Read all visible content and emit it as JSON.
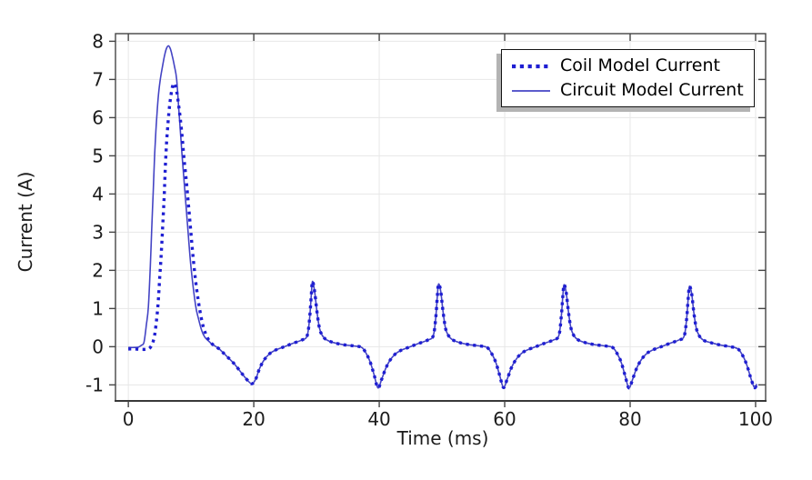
{
  "figure": {
    "background": "#ffffff",
    "axis_color": "#454545",
    "grid_color": "#e7e7e7",
    "text_color": "#1c1c1c"
  },
  "chart_data": {
    "type": "line",
    "title": "",
    "xlabel": "Time (ms)",
    "ylabel": "Current (A)",
    "xlim": [
      -2.05,
      101.6
    ],
    "ylim": [
      -1.42,
      8.2
    ],
    "xticks": [
      0,
      20,
      40,
      60,
      80,
      100
    ],
    "yticks": [
      -1,
      0,
      1,
      2,
      3,
      4,
      5,
      6,
      7,
      8
    ],
    "grid": true,
    "legend": {
      "position": "top-right"
    },
    "point_format": "[time_ms, current_A]",
    "series": [
      {
        "name": "Coil Model Current",
        "style": "dotted",
        "color": "#1e1ed2",
        "width": 3.4,
        "points": [
          [
            0,
            -0.06
          ],
          [
            1,
            -0.06
          ],
          [
            2,
            -0.07
          ],
          [
            2.8,
            -0.07
          ],
          [
            3.3,
            -0.05
          ],
          [
            3.7,
            0.03
          ],
          [
            4,
            0.16
          ],
          [
            4.3,
            0.42
          ],
          [
            4.7,
            1.05
          ],
          [
            5,
            1.8
          ],
          [
            5.2,
            2.3
          ],
          [
            5.45,
            3.05
          ],
          [
            5.7,
            3.9
          ],
          [
            5.9,
            4.7
          ],
          [
            6.1,
            5.35
          ],
          [
            6.35,
            5.9
          ],
          [
            6.6,
            6.35
          ],
          [
            6.9,
            6.7
          ],
          [
            7.1,
            6.85
          ],
          [
            7.3,
            6.9
          ],
          [
            7.5,
            6.82
          ],
          [
            7.75,
            6.65
          ],
          [
            8,
            6.35
          ],
          [
            8.3,
            5.95
          ],
          [
            8.6,
            5.45
          ],
          [
            8.9,
            4.9
          ],
          [
            9.3,
            4.25
          ],
          [
            9.7,
            3.5
          ],
          [
            10.1,
            2.75
          ],
          [
            10.5,
            2.05
          ],
          [
            10.9,
            1.5
          ],
          [
            11.3,
            1.05
          ],
          [
            11.8,
            0.62
          ],
          [
            12.3,
            0.35
          ],
          [
            12.8,
            0.18
          ],
          [
            13.3,
            0.08
          ],
          [
            13.8,
            0.02
          ],
          [
            14.5,
            -0.06
          ],
          [
            15,
            -0.14
          ],
          [
            16,
            -0.3
          ],
          [
            17,
            -0.47
          ],
          [
            18,
            -0.68
          ],
          [
            19,
            -0.88
          ],
          [
            19.7,
            -0.97
          ],
          [
            20.3,
            -0.85
          ],
          [
            20.9,
            -0.58
          ],
          [
            21.6,
            -0.36
          ],
          [
            22.4,
            -0.2
          ],
          [
            23.3,
            -0.1
          ],
          [
            24.7,
            -0.01
          ],
          [
            26.1,
            0.08
          ],
          [
            27.6,
            0.17
          ],
          [
            28.5,
            0.28
          ],
          [
            28.9,
            0.75
          ],
          [
            29.15,
            1.3
          ],
          [
            29.35,
            1.71
          ],
          [
            29.7,
            1.45
          ],
          [
            30.05,
            0.95
          ],
          [
            30.45,
            0.5
          ],
          [
            30.9,
            0.3
          ],
          [
            31.6,
            0.18
          ],
          [
            32.9,
            0.1
          ],
          [
            34.4,
            0.05
          ],
          [
            35.9,
            0.02
          ],
          [
            37.2,
            -0.02
          ],
          [
            38,
            -0.2
          ],
          [
            38.6,
            -0.42
          ],
          [
            39.2,
            -0.75
          ],
          [
            39.8,
            -1.08
          ],
          [
            40.4,
            -0.85
          ],
          [
            41,
            -0.58
          ],
          [
            41.7,
            -0.36
          ],
          [
            42.5,
            -0.2
          ],
          [
            43.4,
            -0.1
          ],
          [
            44.8,
            -0.01
          ],
          [
            46.2,
            0.08
          ],
          [
            47.7,
            0.17
          ],
          [
            48.6,
            0.28
          ],
          [
            49,
            0.75
          ],
          [
            49.25,
            1.3
          ],
          [
            49.45,
            1.64
          ],
          [
            49.8,
            1.45
          ],
          [
            50.15,
            0.95
          ],
          [
            50.55,
            0.5
          ],
          [
            51,
            0.3
          ],
          [
            51.7,
            0.18
          ],
          [
            53,
            0.1
          ],
          [
            54.5,
            0.05
          ],
          [
            56,
            0.02
          ],
          [
            57.2,
            -0.02
          ],
          [
            58,
            -0.2
          ],
          [
            58.6,
            -0.42
          ],
          [
            59.2,
            -0.75
          ],
          [
            59.8,
            -1.07
          ],
          [
            60.4,
            -0.85
          ],
          [
            61,
            -0.58
          ],
          [
            61.7,
            -0.36
          ],
          [
            62.5,
            -0.2
          ],
          [
            63.4,
            -0.1
          ],
          [
            64.8,
            -0.01
          ],
          [
            66.2,
            0.08
          ],
          [
            67.7,
            0.17
          ],
          [
            68.6,
            0.28
          ],
          [
            69,
            0.75
          ],
          [
            69.25,
            1.28
          ],
          [
            69.45,
            1.62
          ],
          [
            69.8,
            1.43
          ],
          [
            70.15,
            0.93
          ],
          [
            70.55,
            0.5
          ],
          [
            71,
            0.3
          ],
          [
            71.7,
            0.18
          ],
          [
            73,
            0.1
          ],
          [
            74.5,
            0.05
          ],
          [
            76,
            0.02
          ],
          [
            77.2,
            -0.02
          ],
          [
            78,
            -0.2
          ],
          [
            78.6,
            -0.42
          ],
          [
            79.2,
            -0.76
          ],
          [
            79.8,
            -1.08
          ],
          [
            80.4,
            -0.85
          ],
          [
            81,
            -0.58
          ],
          [
            81.7,
            -0.36
          ],
          [
            82.5,
            -0.2
          ],
          [
            83.4,
            -0.1
          ],
          [
            84.8,
            -0.01
          ],
          [
            86.2,
            0.08
          ],
          [
            87.7,
            0.17
          ],
          [
            88.6,
            0.27
          ],
          [
            89,
            0.72
          ],
          [
            89.25,
            1.25
          ],
          [
            89.45,
            1.58
          ],
          [
            89.8,
            1.4
          ],
          [
            90.15,
            0.9
          ],
          [
            90.55,
            0.48
          ],
          [
            91,
            0.29
          ],
          [
            91.7,
            0.17
          ],
          [
            93,
            0.1
          ],
          [
            94.5,
            0.04
          ],
          [
            96,
            0
          ],
          [
            97.2,
            -0.06
          ],
          [
            98,
            -0.25
          ],
          [
            98.6,
            -0.48
          ],
          [
            99.2,
            -0.8
          ],
          [
            99.8,
            -1.07
          ],
          [
            100.2,
            -0.98
          ]
        ]
      },
      {
        "name": "Circuit Model Current",
        "style": "solid",
        "color": "#4444c4",
        "width": 1.6,
        "points": [
          [
            0,
            -0.02
          ],
          [
            1,
            -0.02
          ],
          [
            1.6,
            -0.01
          ],
          [
            2.1,
            0.04
          ],
          [
            2.5,
            0.12
          ],
          [
            2.9,
            0.6
          ],
          [
            3.2,
            1.05
          ],
          [
            3.5,
            2.1
          ],
          [
            3.72,
            3.05
          ],
          [
            3.96,
            4.05
          ],
          [
            4.2,
            5.05
          ],
          [
            4.45,
            5.8
          ],
          [
            4.75,
            6.5
          ],
          [
            5.05,
            6.95
          ],
          [
            5.4,
            7.3
          ],
          [
            5.8,
            7.65
          ],
          [
            6.1,
            7.82
          ],
          [
            6.4,
            7.88
          ],
          [
            6.7,
            7.8
          ],
          [
            7,
            7.62
          ],
          [
            7.35,
            7.35
          ],
          [
            7.7,
            7
          ],
          [
            8.1,
            6.1
          ],
          [
            8.55,
            5.05
          ],
          [
            9.03,
            4.05
          ],
          [
            9.5,
            3.05
          ],
          [
            10,
            2.07
          ],
          [
            10.7,
            1.1
          ],
          [
            11.2,
            0.72
          ],
          [
            11.7,
            0.42
          ],
          [
            12.2,
            0.25
          ],
          [
            12.8,
            0.15
          ],
          [
            13.3,
            0.07
          ],
          [
            13.8,
            0.02
          ],
          [
            14.5,
            -0.06
          ],
          [
            15,
            -0.14
          ],
          [
            16,
            -0.3
          ],
          [
            17,
            -0.47
          ],
          [
            18,
            -0.68
          ],
          [
            19,
            -0.88
          ],
          [
            19.7,
            -0.97
          ],
          [
            20.3,
            -0.85
          ],
          [
            20.9,
            -0.58
          ],
          [
            21.6,
            -0.36
          ],
          [
            22.4,
            -0.2
          ],
          [
            23.3,
            -0.1
          ],
          [
            24.7,
            -0.01
          ],
          [
            26.1,
            0.08
          ],
          [
            27.6,
            0.17
          ],
          [
            28.5,
            0.28
          ],
          [
            28.9,
            0.75
          ],
          [
            29.15,
            1.3
          ],
          [
            29.35,
            1.71
          ],
          [
            29.7,
            1.45
          ],
          [
            30.05,
            0.95
          ],
          [
            30.45,
            0.5
          ],
          [
            30.9,
            0.3
          ],
          [
            31.6,
            0.18
          ],
          [
            32.9,
            0.1
          ],
          [
            34.4,
            0.05
          ],
          [
            35.9,
            0.02
          ],
          [
            37.2,
            -0.02
          ],
          [
            38,
            -0.2
          ],
          [
            38.6,
            -0.42
          ],
          [
            39.2,
            -0.75
          ],
          [
            39.8,
            -1.08
          ],
          [
            40.4,
            -0.85
          ],
          [
            41,
            -0.58
          ],
          [
            41.7,
            -0.36
          ],
          [
            42.5,
            -0.2
          ],
          [
            43.4,
            -0.1
          ],
          [
            44.8,
            -0.01
          ],
          [
            46.2,
            0.08
          ],
          [
            47.7,
            0.17
          ],
          [
            48.6,
            0.28
          ],
          [
            49,
            0.75
          ],
          [
            49.25,
            1.3
          ],
          [
            49.45,
            1.64
          ],
          [
            49.8,
            1.45
          ],
          [
            50.15,
            0.95
          ],
          [
            50.55,
            0.5
          ],
          [
            51,
            0.3
          ],
          [
            51.7,
            0.18
          ],
          [
            53,
            0.1
          ],
          [
            54.5,
            0.05
          ],
          [
            56,
            0.02
          ],
          [
            57.2,
            -0.02
          ],
          [
            58,
            -0.2
          ],
          [
            58.6,
            -0.42
          ],
          [
            59.2,
            -0.75
          ],
          [
            59.8,
            -1.07
          ],
          [
            60.4,
            -0.85
          ],
          [
            61,
            -0.58
          ],
          [
            61.7,
            -0.36
          ],
          [
            62.5,
            -0.2
          ],
          [
            63.4,
            -0.1
          ],
          [
            64.8,
            -0.01
          ],
          [
            66.2,
            0.08
          ],
          [
            67.7,
            0.17
          ],
          [
            68.6,
            0.28
          ],
          [
            69,
            0.75
          ],
          [
            69.25,
            1.28
          ],
          [
            69.45,
            1.62
          ],
          [
            69.8,
            1.43
          ],
          [
            70.15,
            0.93
          ],
          [
            70.55,
            0.5
          ],
          [
            71,
            0.3
          ],
          [
            71.7,
            0.18
          ],
          [
            73,
            0.1
          ],
          [
            74.5,
            0.05
          ],
          [
            76,
            0.02
          ],
          [
            77.2,
            -0.02
          ],
          [
            78,
            -0.2
          ],
          [
            78.6,
            -0.42
          ],
          [
            79.2,
            -0.76
          ],
          [
            79.8,
            -1.08
          ],
          [
            80.4,
            -0.85
          ],
          [
            81,
            -0.58
          ],
          [
            81.7,
            -0.36
          ],
          [
            82.5,
            -0.2
          ],
          [
            83.4,
            -0.1
          ],
          [
            84.8,
            -0.01
          ],
          [
            86.2,
            0.08
          ],
          [
            87.7,
            0.17
          ],
          [
            88.6,
            0.27
          ],
          [
            89,
            0.72
          ],
          [
            89.25,
            1.25
          ],
          [
            89.45,
            1.58
          ],
          [
            89.8,
            1.4
          ],
          [
            90.15,
            0.9
          ],
          [
            90.55,
            0.48
          ],
          [
            91,
            0.29
          ],
          [
            91.7,
            0.17
          ],
          [
            93,
            0.1
          ],
          [
            94.5,
            0.04
          ],
          [
            96,
            0
          ],
          [
            97.2,
            -0.06
          ],
          [
            98,
            -0.25
          ],
          [
            98.6,
            -0.48
          ],
          [
            99.2,
            -0.8
          ],
          [
            99.8,
            -1.07
          ],
          [
            100.2,
            -0.98
          ]
        ]
      }
    ]
  }
}
